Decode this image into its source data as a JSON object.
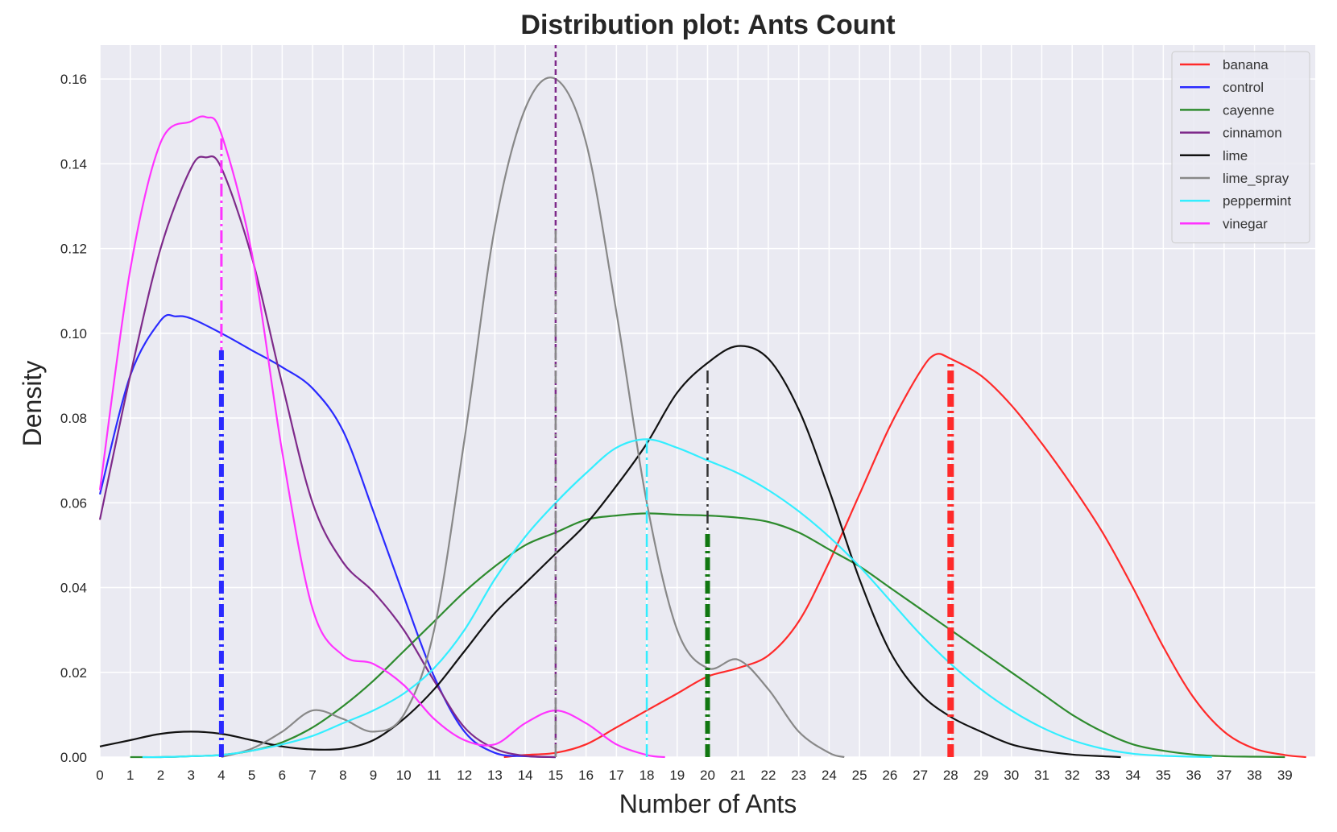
{
  "chart_data": {
    "type": "line",
    "title": "Distribution plot: Ants Count",
    "xlabel": "Number of Ants",
    "ylabel": "Density",
    "xlim": [
      0,
      40
    ],
    "ylim": [
      0,
      0.168
    ],
    "xticks": [
      0,
      1,
      2,
      3,
      4,
      5,
      6,
      7,
      8,
      9,
      10,
      11,
      12,
      13,
      14,
      15,
      16,
      17,
      18,
      19,
      20,
      21,
      22,
      23,
      24,
      25,
      26,
      27,
      28,
      29,
      30,
      31,
      32,
      33,
      34,
      35,
      36,
      37,
      38,
      39
    ],
    "yticks": [
      0.0,
      0.02,
      0.04,
      0.06,
      0.08,
      0.1,
      0.12,
      0.14,
      0.16
    ],
    "ytick_labels": [
      "0.00",
      "0.02",
      "0.04",
      "0.06",
      "0.08",
      "0.10",
      "0.12",
      "0.14",
      "0.16"
    ],
    "grid": true,
    "background": "#eaeaf2",
    "legend": {
      "placement": "top-right"
    },
    "series": [
      {
        "name": "banana",
        "color": "#ff2a2a",
        "x": [
          13.3,
          14,
          15,
          16,
          17,
          18,
          19,
          20,
          21,
          22,
          23,
          24,
          25,
          26,
          27,
          27.5,
          28,
          29,
          30,
          31,
          32,
          33,
          34,
          35,
          36,
          37,
          38,
          39,
          39.7
        ],
        "y": [
          0.0,
          0.0005,
          0.001,
          0.003,
          0.007,
          0.011,
          0.015,
          0.019,
          0.021,
          0.024,
          0.032,
          0.046,
          0.062,
          0.078,
          0.091,
          0.095,
          0.094,
          0.09,
          0.083,
          0.074,
          0.064,
          0.053,
          0.04,
          0.026,
          0.014,
          0.006,
          0.002,
          0.0005,
          0.0
        ]
      },
      {
        "name": "control",
        "color": "#2a2aff",
        "x": [
          0,
          1,
          2,
          2.5,
          3,
          4,
          5,
          6,
          7,
          8,
          9,
          10,
          11,
          12,
          13,
          14,
          15
        ],
        "y": [
          0.062,
          0.09,
          0.103,
          0.104,
          0.1035,
          0.1,
          0.096,
          0.092,
          0.087,
          0.077,
          0.058,
          0.038,
          0.019,
          0.006,
          0.001,
          0.0002,
          0.0
        ]
      },
      {
        "name": "cayenne",
        "color": "#2e8b2e",
        "x": [
          1,
          2,
          3,
          4,
          5,
          6,
          7,
          8,
          9,
          10,
          11,
          12,
          13,
          14,
          15,
          16,
          17,
          18,
          19,
          20,
          21,
          22,
          23,
          24,
          25,
          26,
          27,
          28,
          29,
          30,
          31,
          32,
          33,
          34,
          35,
          36,
          37,
          38,
          39
        ],
        "y": [
          0.0,
          0.0,
          0.0002,
          0.0005,
          0.0015,
          0.0035,
          0.007,
          0.012,
          0.018,
          0.025,
          0.032,
          0.039,
          0.045,
          0.05,
          0.053,
          0.056,
          0.057,
          0.0575,
          0.0572,
          0.057,
          0.0565,
          0.0555,
          0.053,
          0.049,
          0.045,
          0.04,
          0.035,
          0.03,
          0.025,
          0.02,
          0.015,
          0.01,
          0.006,
          0.003,
          0.0015,
          0.0006,
          0.0002,
          0.0001,
          0.0
        ]
      },
      {
        "name": "cinnamon",
        "color": "#7e2a8a",
        "x": [
          0,
          1,
          2,
          3,
          3.5,
          4,
          5,
          6,
          7,
          8,
          9,
          10,
          11,
          12,
          13,
          14,
          15
        ],
        "y": [
          0.056,
          0.09,
          0.12,
          0.139,
          0.1415,
          0.139,
          0.118,
          0.088,
          0.06,
          0.046,
          0.039,
          0.03,
          0.018,
          0.007,
          0.002,
          0.0003,
          0.0
        ]
      },
      {
        "name": "lime",
        "color": "#111111",
        "x": [
          0,
          1,
          2,
          3,
          4,
          5,
          6,
          7,
          8,
          9,
          10,
          11,
          12,
          13,
          14,
          15,
          16,
          17,
          18,
          19,
          20,
          21,
          22,
          23,
          24,
          25,
          26,
          27,
          28,
          29,
          30,
          31,
          32,
          33,
          33.6
        ],
        "y": [
          0.0025,
          0.004,
          0.0055,
          0.006,
          0.0055,
          0.004,
          0.0025,
          0.0018,
          0.002,
          0.004,
          0.009,
          0.016,
          0.025,
          0.034,
          0.041,
          0.048,
          0.055,
          0.064,
          0.074,
          0.086,
          0.093,
          0.097,
          0.094,
          0.082,
          0.063,
          0.042,
          0.025,
          0.015,
          0.0095,
          0.006,
          0.003,
          0.0015,
          0.0006,
          0.0002,
          0.0
        ]
      },
      {
        "name": "lime_spray",
        "color": "#888888",
        "x": [
          4,
          5,
          6,
          7,
          8,
          9,
          10,
          11,
          12,
          13,
          14,
          15,
          16,
          17,
          18,
          19,
          20,
          21,
          22,
          23,
          24,
          24.5
        ],
        "y": [
          0.0,
          0.002,
          0.006,
          0.011,
          0.009,
          0.006,
          0.01,
          0.03,
          0.075,
          0.125,
          0.153,
          0.16,
          0.145,
          0.105,
          0.06,
          0.03,
          0.021,
          0.023,
          0.016,
          0.006,
          0.001,
          0.0
        ]
      },
      {
        "name": "peppermint",
        "color": "#33eeff",
        "x": [
          1.4,
          2,
          3,
          4,
          5,
          6,
          7,
          8,
          9,
          10,
          11,
          12,
          13,
          14,
          15,
          16,
          17,
          18,
          19,
          20,
          21,
          22,
          23,
          24,
          25,
          26,
          27,
          28,
          29,
          30,
          31,
          32,
          33,
          34,
          35,
          36,
          36.6
        ],
        "y": [
          0.0,
          0.0,
          0.0002,
          0.0005,
          0.0015,
          0.003,
          0.005,
          0.008,
          0.011,
          0.015,
          0.021,
          0.03,
          0.042,
          0.052,
          0.06,
          0.067,
          0.073,
          0.075,
          0.073,
          0.07,
          0.067,
          0.063,
          0.058,
          0.052,
          0.045,
          0.037,
          0.029,
          0.022,
          0.016,
          0.011,
          0.007,
          0.004,
          0.002,
          0.0008,
          0.0003,
          0.0001,
          0.0
        ]
      },
      {
        "name": "vinegar",
        "color": "#ff33ff",
        "x": [
          0,
          1,
          2,
          3,
          3.5,
          4,
          5,
          6,
          7,
          8,
          9,
          10,
          11,
          12,
          13,
          14,
          15,
          16,
          17,
          18,
          18.6
        ],
        "y": [
          0.063,
          0.115,
          0.145,
          0.15,
          0.151,
          0.147,
          0.119,
          0.072,
          0.035,
          0.024,
          0.022,
          0.017,
          0.009,
          0.004,
          0.003,
          0.008,
          0.011,
          0.008,
          0.003,
          0.0005,
          0.0
        ]
      }
    ],
    "reference_lines": [
      {
        "x": 4,
        "color": "#ff33ff",
        "style": "dashdot",
        "width": 3,
        "y_top": 0.146
      },
      {
        "x": 4,
        "color": "#2a2aff",
        "style": "dashdot",
        "width": 6,
        "y_top": 0.096
      },
      {
        "x": 15,
        "color": "#7e2a8a",
        "style": "dashed",
        "width": 2.5,
        "y_top": 0.168
      },
      {
        "x": 15,
        "color": "#888888",
        "style": "dashdot",
        "width": 2.5,
        "y_top": 0.125
      },
      {
        "x": 18,
        "color": "#33eeff",
        "style": "dashdot",
        "width": 2.5,
        "y_top": 0.075
      },
      {
        "x": 20,
        "color": "#333333",
        "style": "dashdot",
        "width": 2.5,
        "y_top": 0.092
      },
      {
        "x": 20,
        "color": "#117711",
        "style": "dashdot",
        "width": 6,
        "y_top": 0.053
      },
      {
        "x": 28,
        "color": "#ff2a2a",
        "style": "dashdot",
        "width": 8,
        "y_top": 0.093
      }
    ]
  }
}
